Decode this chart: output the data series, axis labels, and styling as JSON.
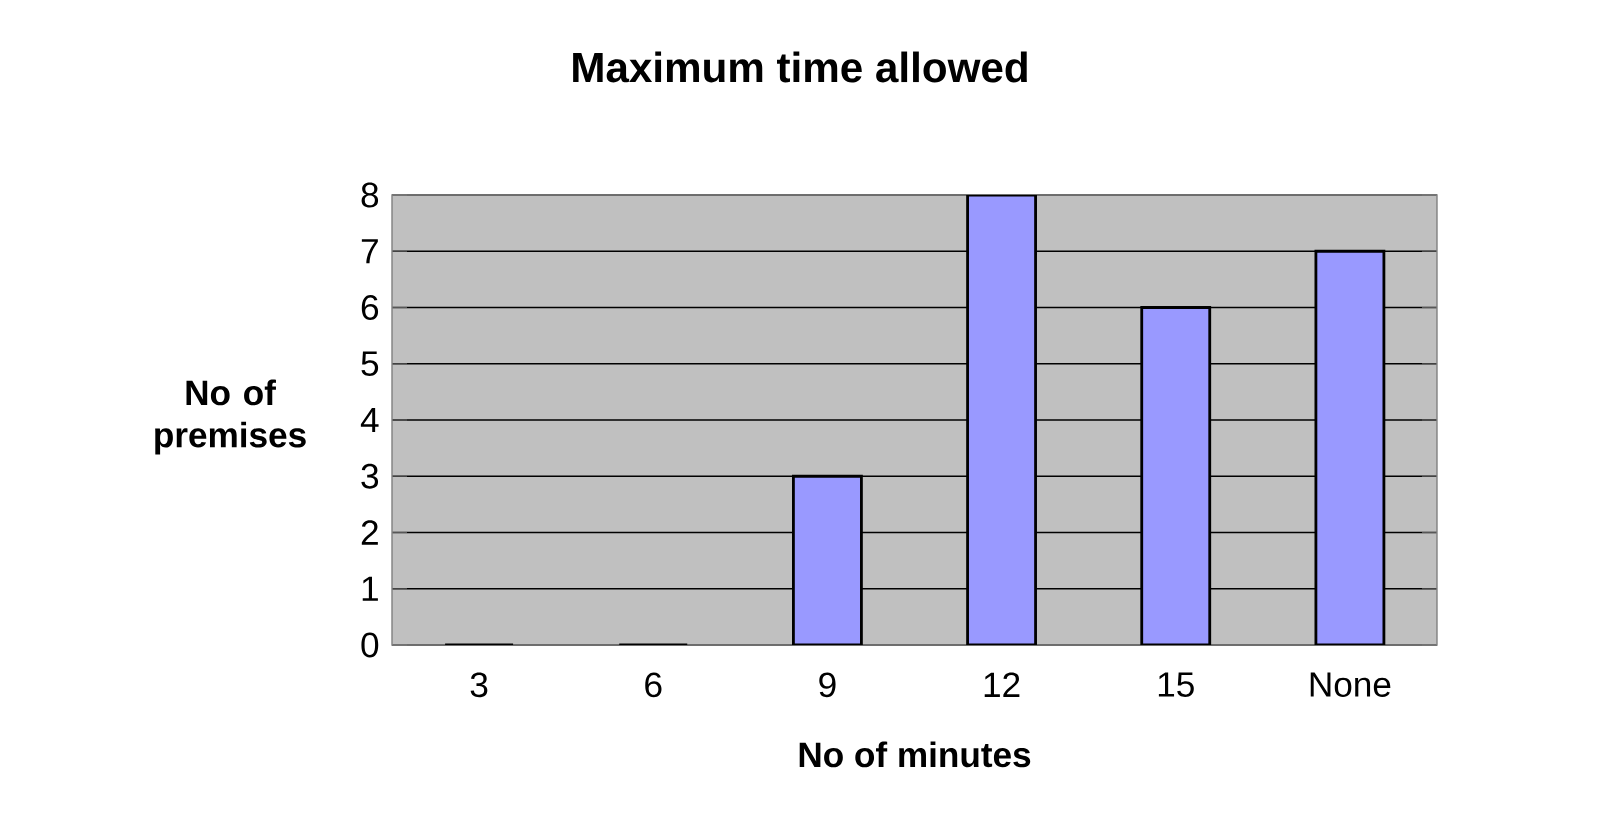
{
  "chart_data": {
    "type": "bar",
    "title": "Maximum time allowed",
    "xlabel": "No of minutes",
    "ylabel": "No of premises",
    "categories": [
      "3",
      "6",
      "9",
      "12",
      "15",
      "None"
    ],
    "values": [
      0,
      0,
      3,
      8,
      6,
      7
    ],
    "color": "#9999ff",
    "ylim": [
      0,
      8
    ],
    "yticks": [
      0,
      1,
      2,
      3,
      4,
      5,
      6,
      7,
      8
    ],
    "grid": "y"
  }
}
